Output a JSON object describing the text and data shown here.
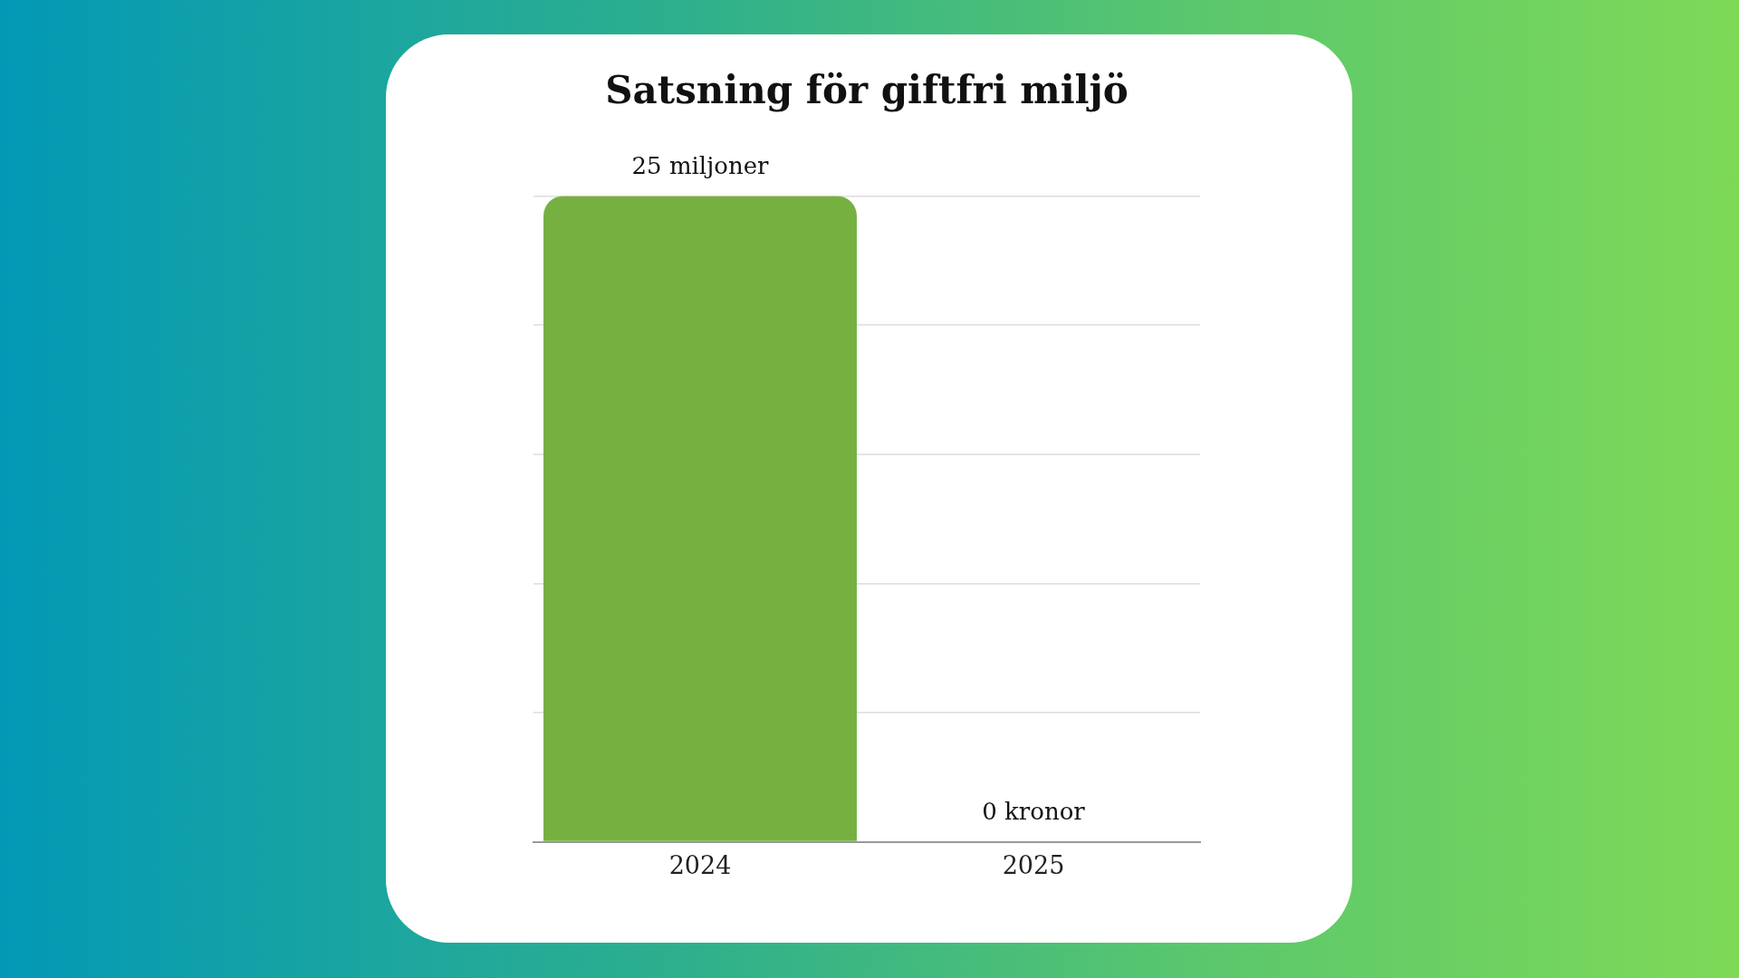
{
  "chart_data": {
    "type": "bar",
    "title": "Satsning för giftfri miljö",
    "categories": [
      "2024",
      "2025"
    ],
    "values": [
      25,
      0
    ],
    "color": "#76b041",
    "value_labels": [
      "25 miljoner",
      "0 kronor"
    ],
    "ylim": [
      0,
      25
    ],
    "yticks": [
      {
        "value": 0,
        "label": null
      },
      {
        "value": 5,
        "label": null
      },
      {
        "value": 10,
        "label": null
      },
      {
        "value": 15,
        "label": null
      },
      {
        "value": 20,
        "label": null
      },
      {
        "value": 25,
        "label": null
      }
    ],
    "grid": "y",
    "tick_labels": "x"
  }
}
